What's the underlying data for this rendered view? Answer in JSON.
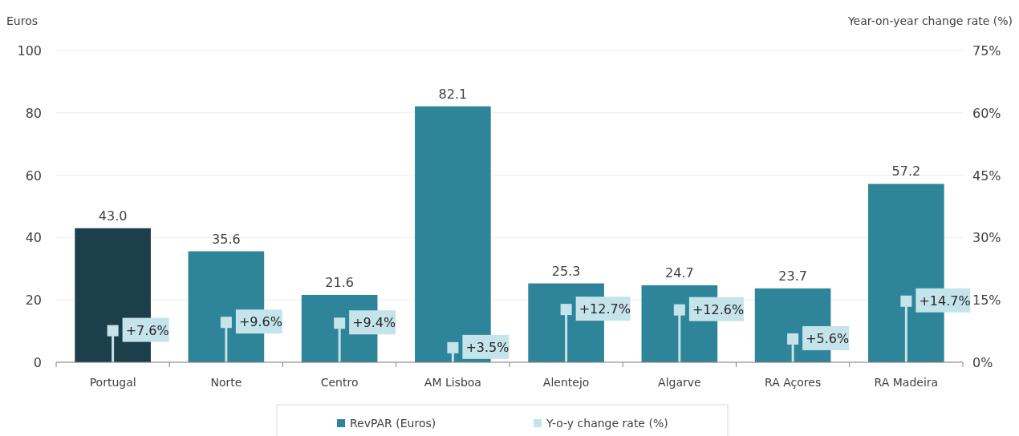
{
  "chart_data": {
    "type": "bar",
    "ylabel": "Euros",
    "y2label": "Year-on-year change rate (%)",
    "categories": [
      "Portugal",
      "Norte",
      "Centro",
      "AM Lisboa",
      "Alentejo",
      "Algarve",
      "RA Açores",
      "RA Madeira"
    ],
    "series": [
      {
        "name": "RevPAR (Euros)",
        "color": "#2e8599",
        "colors": [
          "#1c3f4c",
          "#2e8599",
          "#2e8599",
          "#2e8599",
          "#2e8599",
          "#2e8599",
          "#2e8599",
          "#2e8599"
        ],
        "values": [
          43.0,
          35.6,
          21.6,
          82.1,
          25.3,
          24.7,
          23.7,
          57.2
        ],
        "value_labels": [
          "43.0",
          "35.6",
          "21.6",
          "82.1",
          "25.3",
          "24.7",
          "23.7",
          "57.2"
        ]
      },
      {
        "name": "Y-o-y change rate (%)",
        "type": "lollipop",
        "axis": "y2",
        "color": "#c5e3ea",
        "values": [
          7.6,
          9.6,
          9.4,
          3.5,
          12.7,
          12.6,
          5.6,
          14.7
        ],
        "value_labels": [
          "+7.6%",
          "+9.6%",
          "+9.4%",
          "+3.5%",
          "+12.7%",
          "+12.6%",
          "+5.6%",
          "+14.7%"
        ]
      }
    ],
    "ylim": [
      0,
      100
    ],
    "yticks": [
      0,
      20,
      40,
      60,
      80,
      100
    ],
    "y2lim": [
      0,
      75
    ],
    "y2ticks": [
      {
        "value": 0,
        "label": "0%"
      },
      {
        "value": 15,
        "label": "15%"
      },
      {
        "value": 30,
        "label": "30%"
      },
      {
        "value": 45,
        "label": "45%"
      },
      {
        "value": 60,
        "label": "60%"
      },
      {
        "value": 75,
        "label": "75%"
      }
    ],
    "grid": "y",
    "legend": "bottom",
    "marker": "square"
  }
}
